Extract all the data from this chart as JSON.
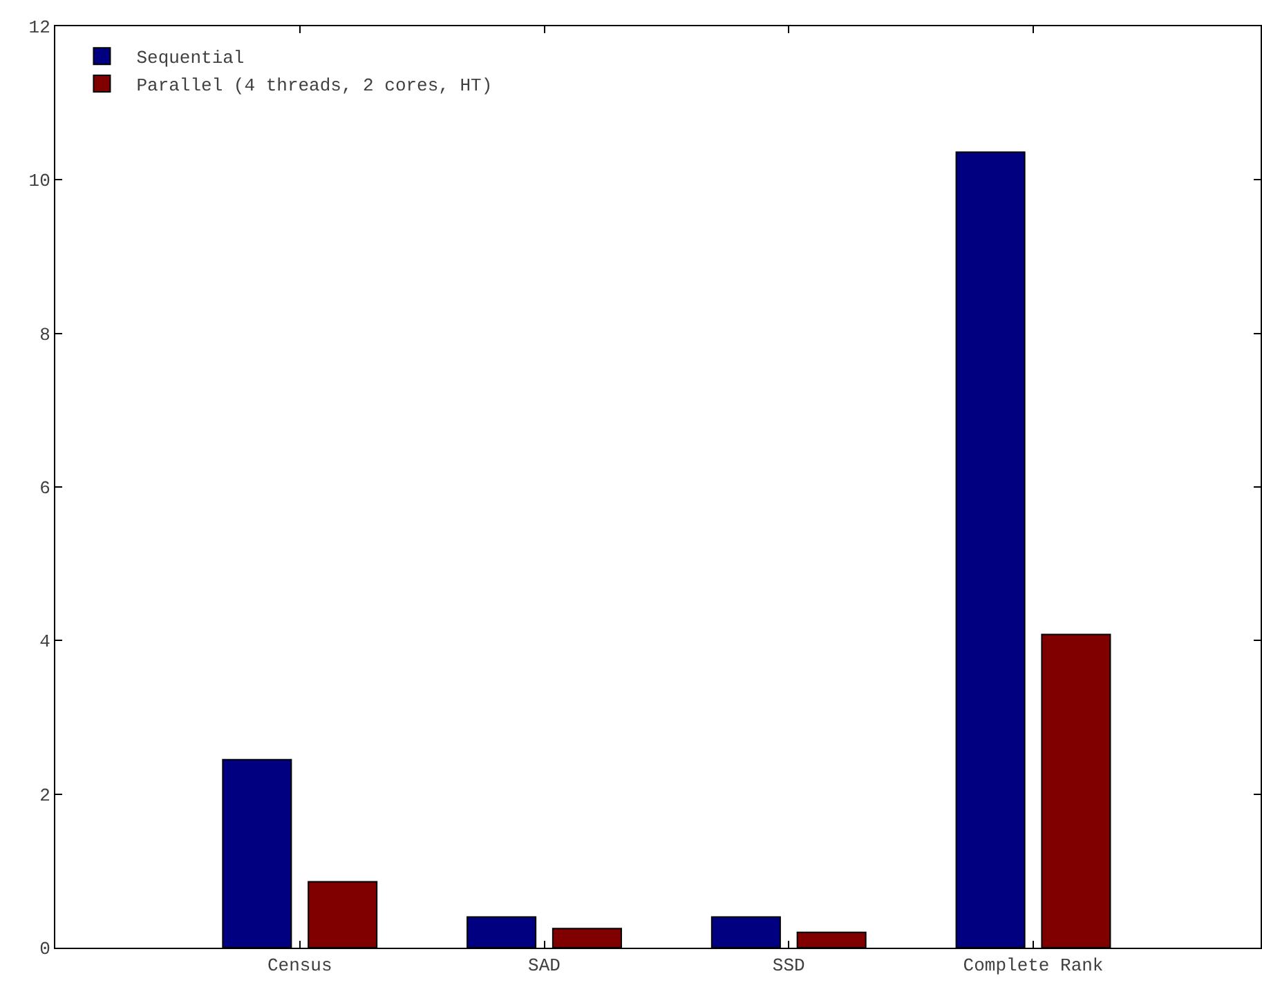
{
  "chart_data": {
    "type": "bar",
    "categories": [
      "Census",
      "SAD",
      "SSD",
      "Complete Rank"
    ],
    "series": [
      {
        "name": "Sequential",
        "color": "#000080",
        "values": [
          2.45,
          0.4,
          0.4,
          10.36
        ]
      },
      {
        "name": "Parallel (4 threads, 2 cores, HT)",
        "color": "#800000",
        "values": [
          0.86,
          0.25,
          0.2,
          4.08
        ]
      }
    ],
    "ylim": [
      0,
      12
    ],
    "yticks": [
      0,
      2,
      4,
      6,
      8,
      10,
      12
    ],
    "legend": "top left"
  }
}
